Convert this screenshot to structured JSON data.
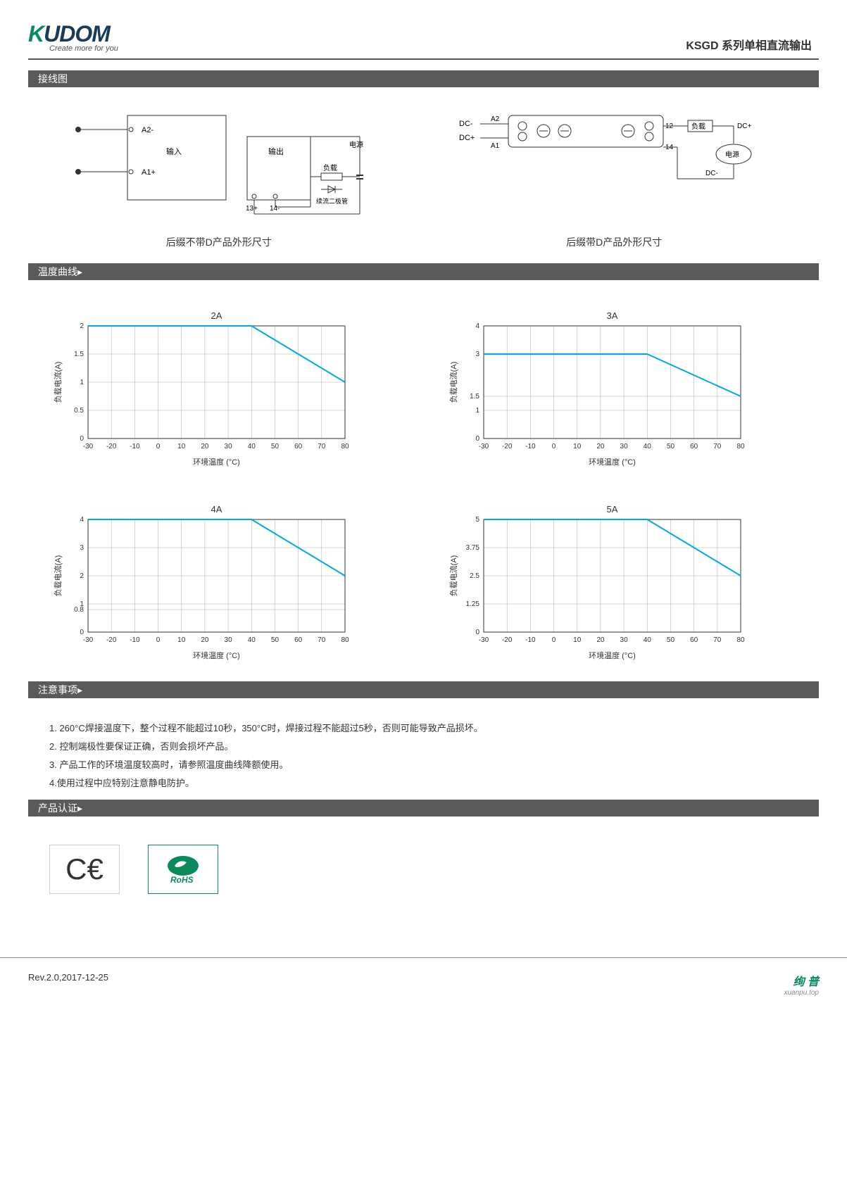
{
  "header": {
    "logo_prefix": "K",
    "logo_rest": "UDOM",
    "tagline": "Create more for you",
    "series_title": "KSGD 系列单相直流输出"
  },
  "sections": {
    "wiring": "接线图",
    "temp_curve": "温度曲线",
    "notes": "注意事项",
    "cert": "产品认证"
  },
  "wiring_diagram_left": {
    "labels": {
      "a2": "A2-",
      "a1": "A1+",
      "input": "输入",
      "output": "输出",
      "power": "电源",
      "load": "负载",
      "diode": "续流二极管",
      "t13": "13+",
      "t14": "14-"
    },
    "caption": "后缀不带D产品外形尺寸"
  },
  "wiring_diagram_right": {
    "labels": {
      "dc_minus": "DC-",
      "dc_plus": "DC+",
      "a2": "A2",
      "a1": "A1",
      "t12": "12",
      "t14": "14",
      "load": "负载",
      "power": "电源",
      "dc_plus_r": "DC+",
      "dc_minus_r": "DC-"
    },
    "caption": "后缀带D产品外形尺寸"
  },
  "charts": [
    {
      "title": "2A",
      "ylabel": "负载电流(A)",
      "xlabel": "环境温度 (°C)",
      "xlim": [
        -30,
        80
      ],
      "ylim": [
        0,
        2
      ],
      "xticks": [
        -30,
        -20,
        -10,
        0,
        10,
        20,
        30,
        40,
        50,
        60,
        70,
        80
      ],
      "yticks": [
        0,
        0.5,
        1,
        1.5,
        2
      ],
      "line_color": "#00a8e8",
      "data": [
        [
          -30,
          2
        ],
        [
          40,
          2
        ],
        [
          80,
          1
        ]
      ],
      "grid_color": "#aaaaaa",
      "background": "#ffffff",
      "title_fontsize": 13,
      "axis_fontsize": 10
    },
    {
      "title": "3A",
      "ylabel": "负载电流(A)",
      "xlabel": "环境温度 (°C)",
      "xlim": [
        -30,
        80
      ],
      "ylim": [
        0,
        4
      ],
      "xticks": [
        -30,
        -20,
        -10,
        0,
        10,
        20,
        30,
        40,
        50,
        60,
        70,
        80
      ],
      "yticks": [
        0,
        1,
        1.5,
        3,
        4
      ],
      "line_color": "#00a8e8",
      "data": [
        [
          -30,
          3
        ],
        [
          40,
          3
        ],
        [
          80,
          1.5
        ]
      ],
      "grid_color": "#aaaaaa",
      "background": "#ffffff",
      "title_fontsize": 13,
      "axis_fontsize": 10
    },
    {
      "title": "4A",
      "ylabel": "负载电流(A)",
      "xlabel": "环境温度 (°C)",
      "xlim": [
        -30,
        80
      ],
      "ylim": [
        0,
        4
      ],
      "xticks": [
        -30,
        -20,
        -10,
        0,
        10,
        20,
        30,
        40,
        50,
        60,
        70,
        80
      ],
      "yticks": [
        0,
        0.8,
        1,
        2,
        3,
        4
      ],
      "line_color": "#00a8e8",
      "data": [
        [
          -30,
          4
        ],
        [
          40,
          4
        ],
        [
          80,
          2
        ]
      ],
      "grid_color": "#aaaaaa",
      "background": "#ffffff",
      "title_fontsize": 13,
      "axis_fontsize": 10
    },
    {
      "title": "5A",
      "ylabel": "负载电流(A)",
      "xlabel": "环境温度 (°C)",
      "xlim": [
        -30,
        80
      ],
      "ylim": [
        0,
        5
      ],
      "xticks": [
        -30,
        -20,
        -10,
        0,
        10,
        20,
        30,
        40,
        50,
        60,
        70,
        80
      ],
      "yticks": [
        0,
        1.25,
        2.5,
        3.75,
        5
      ],
      "line_color": "#00a8e8",
      "data": [
        [
          -30,
          5
        ],
        [
          40,
          5
        ],
        [
          80,
          2.5
        ]
      ],
      "grid_color": "#aaaaaa",
      "background": "#ffffff",
      "title_fontsize": 13,
      "axis_fontsize": 10
    }
  ],
  "notes_list": [
    "1. 260°C焊接温度下，整个过程不能超过10秒，350°C时，焊接过程不能超过5秒，否则可能导致产品损坏。",
    "2. 控制端极性要保证正确，否则会损坏产品。",
    "3. 产品工作的环境温度较高时，请参照温度曲线降额使用。",
    "4.使用过程中应特别注意静电防护。"
  ],
  "certs": {
    "ce": "CE",
    "rohs": "RoHS"
  },
  "footer": {
    "rev": "Rev.2.0,2017-12-25",
    "brand_cn": "绚 普",
    "brand_en": "xuanpu.top"
  }
}
